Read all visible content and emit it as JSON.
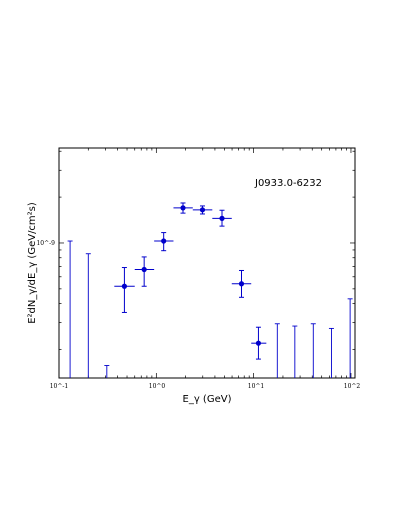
{
  "chart_data": {
    "type": "scatter",
    "title": "",
    "annotation": "J0933.0-6232",
    "xlabel": "E_γ (GeV)",
    "ylabel": "E²dN_γ/dE_γ (GeV/cm²s)",
    "xscale": "log",
    "yscale": "log",
    "xlim": [
      0.1,
      110
    ],
    "ylim": [
      1.3e-10,
      4.2e-09
    ],
    "grid": false,
    "legend": "none",
    "x_tick_labels": [
      "10^-1",
      "10^0",
      "10^1",
      "10^2"
    ],
    "y_tick_labels": [
      "10^-9"
    ],
    "marker_color": "#0000cc",
    "points": [
      {
        "x": 0.47,
        "y": 5.2e-10,
        "xerr": [
          0.37,
          0.6
        ],
        "yerr": [
          3.5e-10,
          6.9e-10
        ]
      },
      {
        "x": 0.75,
        "y": 6.7e-10,
        "xerr": [
          0.6,
          0.95
        ],
        "yerr": [
          5.2e-10,
          8.1e-10
        ]
      },
      {
        "x": 1.19,
        "y": 1.03e-09,
        "xerr": [
          0.95,
          1.5
        ],
        "yerr": [
          8.9e-10,
          1.17e-09
        ]
      },
      {
        "x": 1.88,
        "y": 1.7e-09,
        "xerr": [
          1.5,
          2.37
        ],
        "yerr": [
          1.57e-09,
          1.83e-09
        ]
      },
      {
        "x": 2.98,
        "y": 1.65e-09,
        "xerr": [
          2.37,
          3.76
        ],
        "yerr": [
          1.55e-09,
          1.75e-09
        ]
      },
      {
        "x": 4.73,
        "y": 1.45e-09,
        "xerr": [
          3.76,
          5.96
        ],
        "yerr": [
          1.29e-09,
          1.64e-09
        ]
      },
      {
        "x": 7.5,
        "y": 5.4e-10,
        "xerr": [
          5.96,
          9.44
        ],
        "yerr": [
          4.4e-10,
          6.6e-10
        ]
      },
      {
        "x": 11.2,
        "y": 2.2e-10,
        "xerr": [
          9.44,
          13.5
        ],
        "yerr": [
          1.73e-10,
          2.8e-10
        ]
      }
    ],
    "upper_limits": [
      {
        "x": 0.13,
        "y": 1.03e-09
      },
      {
        "x": 0.2,
        "y": 8.5e-10
      },
      {
        "x": 0.31,
        "y": 1.57e-10
      },
      {
        "x": 17.5,
        "y": 2.95e-10
      },
      {
        "x": 26.5,
        "y": 2.85e-10
      },
      {
        "x": 41,
        "y": 2.95e-10
      },
      {
        "x": 63,
        "y": 2.75e-10
      },
      {
        "x": 98,
        "y": 4.3e-10
      }
    ]
  }
}
